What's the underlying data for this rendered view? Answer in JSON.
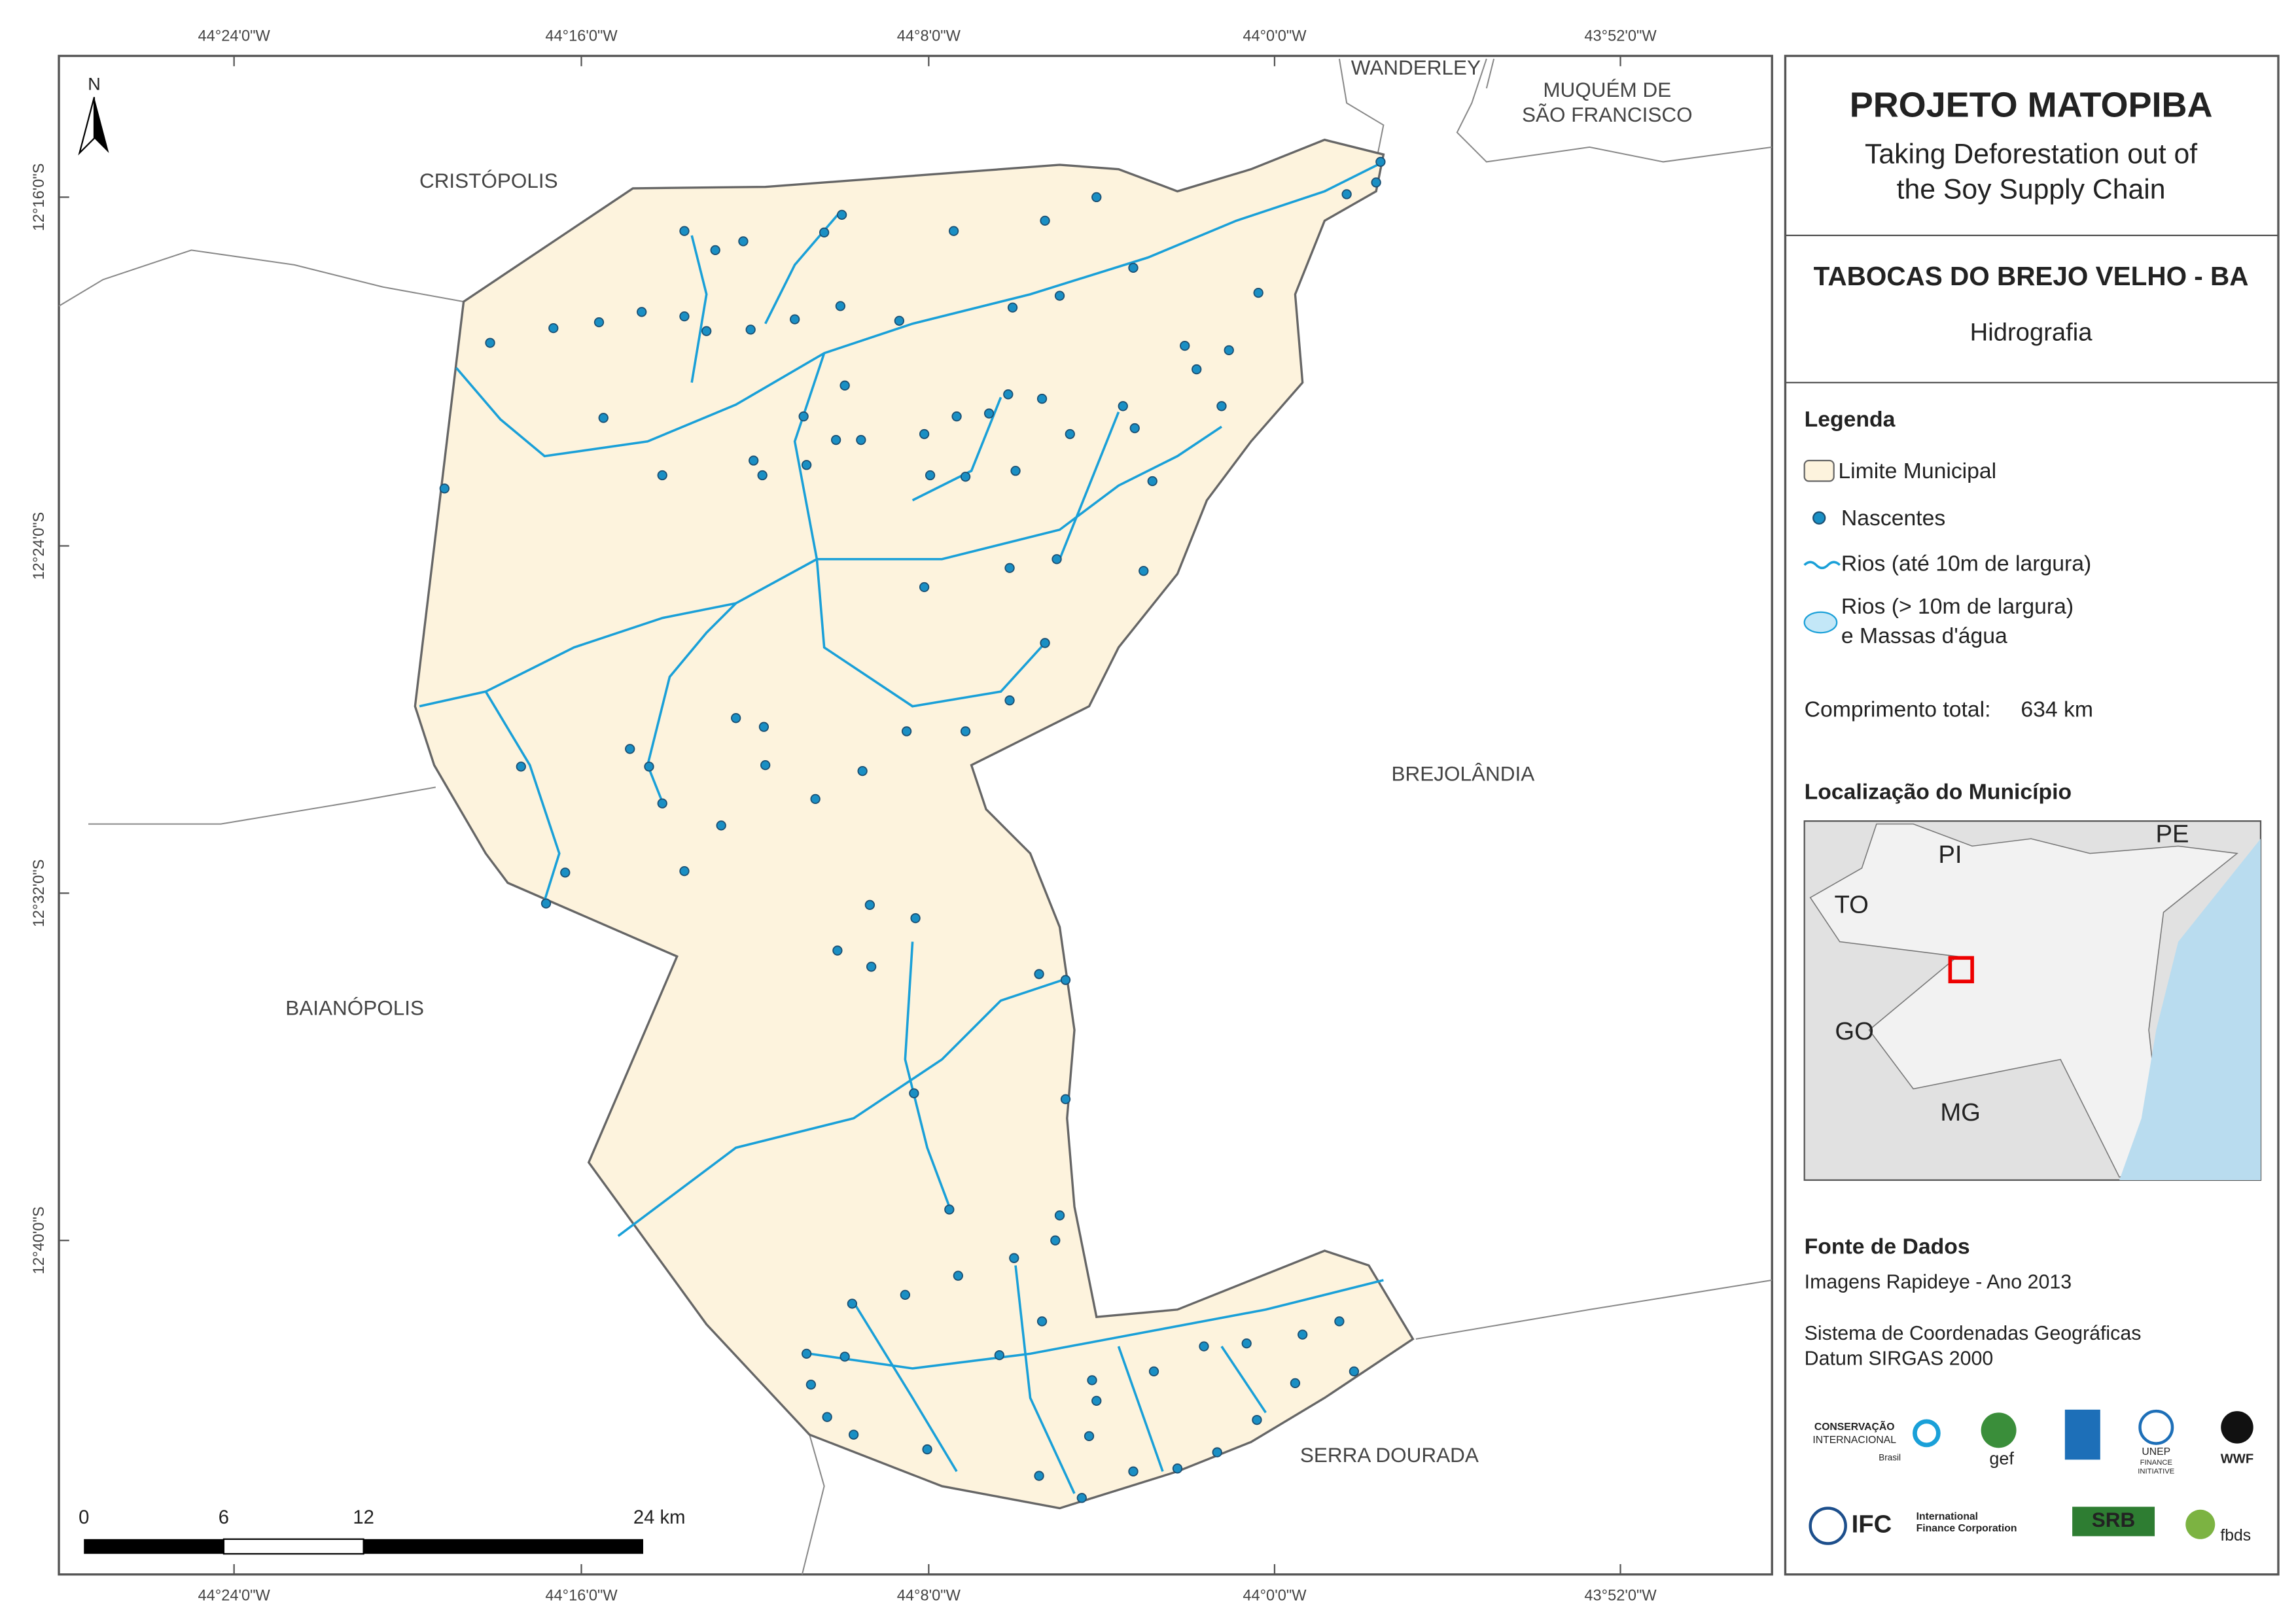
{
  "map": {
    "top_coords": [
      "44°24'0\"W",
      "44°16'0\"W",
      "44°8'0\"W",
      "44°0'0\"W",
      "43°52'0\"W"
    ],
    "bottom_coords": [
      "44°24'0\"W",
      "44°16'0\"W",
      "44°8'0\"W",
      "44°0'0\"W",
      "43°52'0\"W"
    ],
    "left_coords": [
      "12°16'0\"S",
      "12°24'0\"S",
      "12°32'0\"S",
      "12°40'0\"S"
    ],
    "north": "N",
    "places": {
      "wanderley": "WANDERLEY",
      "muquem": [
        "MUQUÉM DE",
        "SÃO FRANCISCO"
      ],
      "cristopolis": "CRISTÓPOLIS",
      "brejolandia": "BREJOLÂNDIA",
      "baianopolis": "BAIANÓPOLIS",
      "serra_dourada": "SERRA DOURADA"
    },
    "scale": [
      "0",
      "6",
      "12",
      "24 km"
    ]
  },
  "panel": {
    "title": "PROJETO MATOPIBA",
    "subtitle": [
      "Taking Deforestation out of",
      "the Soy Supply Chain"
    ],
    "municipality": "TABOCAS DO BREJO VELHO - BA",
    "theme": "Hidrografia",
    "legend": {
      "heading": "Legenda",
      "items": [
        "Limite Municipal",
        "Nascentes",
        "Rios (até 10m de largura)",
        "Rios (> 10m de largura)",
        "e Massas d'água"
      ]
    },
    "length": {
      "label": "Comprimento total:",
      "value": "634 km"
    },
    "location": {
      "heading": "Localização do Município",
      "states": [
        "PI",
        "PE",
        "TO",
        "GO",
        "MG"
      ]
    },
    "sources": {
      "heading": "Fonte de Dados",
      "lines": [
        "Imagens Rapideye - Ano 2013",
        "Sistema de Coordenadas Geográficas",
        "Datum SIRGAS 2000"
      ]
    },
    "logos": [
      "CONSERVAÇÃO",
      "INTERNACIONAL",
      "Brasil",
      "gef",
      "UNEP",
      "FINANCE",
      "INITIATIVE",
      "WWF",
      "IFC",
      "International",
      "Finance Corporation",
      "SRB",
      "fbds"
    ]
  }
}
